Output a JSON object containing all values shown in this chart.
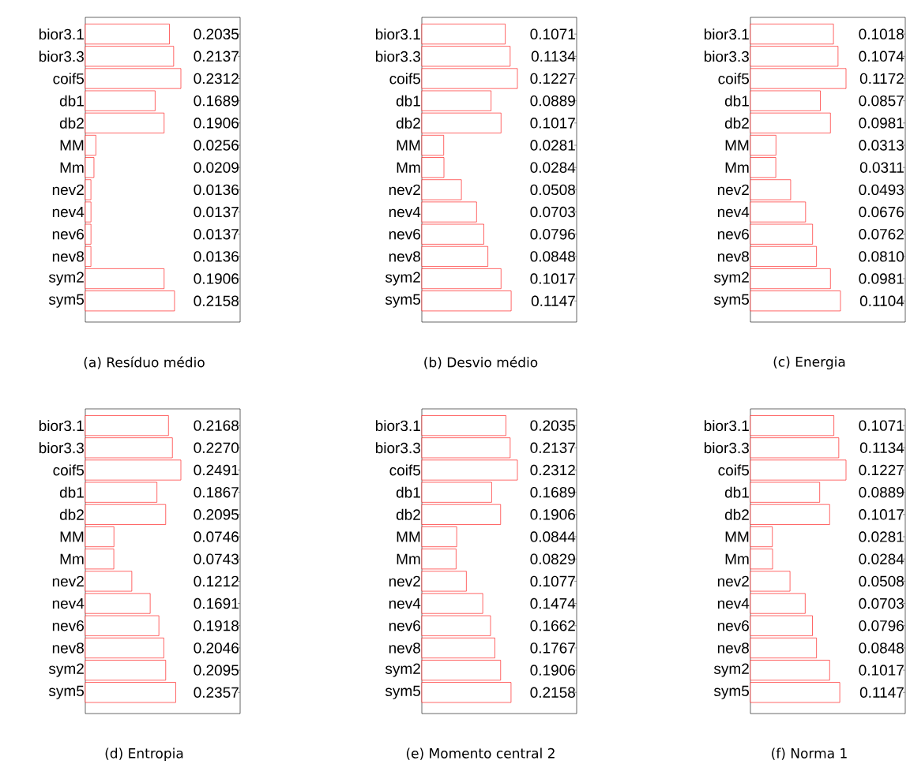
{
  "chart_data": [
    {
      "type": "bar",
      "orientation": "horizontal",
      "title": "(a) Resíduo médio",
      "categories": [
        "bior3.1",
        "bior3.3",
        "coif5",
        "db1",
        "db2",
        "MM",
        "Mm",
        "nev2",
        "nev4",
        "nev6",
        "nev8",
        "sym2",
        "sym5"
      ],
      "values": [
        0.2035,
        0.2137,
        0.2312,
        0.1689,
        0.1906,
        0.0256,
        0.0209,
        0.0136,
        0.0137,
        0.0137,
        0.0136,
        0.1906,
        0.2158
      ],
      "value_labels": [
        "0.2035",
        "0.2137",
        "0.2312",
        "0.1689",
        "0.1906",
        "0.0256",
        "0.0209",
        "0.0136",
        "0.0137",
        "0.0137",
        "0.0136",
        "0.1906",
        "0.2158"
      ],
      "color": "#ff0000",
      "tick_labels": "y"
    },
    {
      "type": "bar",
      "orientation": "horizontal",
      "title": "(b) Desvio médio",
      "categories": [
        "bior3.1",
        "bior3.3",
        "coif5",
        "db1",
        "db2",
        "MM",
        "Mm",
        "nev2",
        "nev4",
        "nev6",
        "nev8",
        "sym2",
        "sym5"
      ],
      "values": [
        0.1071,
        0.1134,
        0.1227,
        0.0889,
        0.1017,
        0.0281,
        0.0284,
        0.0508,
        0.0703,
        0.0796,
        0.0848,
        0.1017,
        0.1147
      ],
      "value_labels": [
        "0.1071",
        "0.1134",
        "0.1227",
        "0.0889",
        "0.1017",
        "0.0281",
        "0.0284",
        "0.0508",
        "0.0703",
        "0.0796",
        "0.0848",
        "0.1017",
        "0.1147"
      ],
      "color": "#ff0000",
      "tick_labels": "y"
    },
    {
      "type": "bar",
      "orientation": "horizontal",
      "title": "(c) Energia",
      "categories": [
        "bior3.1",
        "bior3.3",
        "coif5",
        "db1",
        "db2",
        "MM",
        "Mm",
        "nev2",
        "nev4",
        "nev6",
        "nev8",
        "sym2",
        "sym5"
      ],
      "values": [
        0.1018,
        0.1074,
        0.1172,
        0.0857,
        0.0981,
        0.0313,
        0.0311,
        0.0493,
        0.0676,
        0.0762,
        0.081,
        0.0981,
        0.1104
      ],
      "value_labels": [
        "0.1018",
        "0.1074",
        "0.1172",
        "0.0857",
        "0.0981",
        "0.0313",
        "0.0311",
        "0.0493",
        "0.0676",
        "0.0762",
        "0.0810",
        "0.0981",
        "0.1104"
      ],
      "color": "#ff0000",
      "tick_labels": "y"
    },
    {
      "type": "bar",
      "orientation": "horizontal",
      "title": "(d) Entropia",
      "categories": [
        "bior3.1",
        "bior3.3",
        "coif5",
        "db1",
        "db2",
        "MM",
        "Mm",
        "nev2",
        "nev4",
        "nev6",
        "nev8",
        "sym2",
        "sym5"
      ],
      "values": [
        0.2168,
        0.227,
        0.2491,
        0.1867,
        0.2095,
        0.0746,
        0.0743,
        0.1212,
        0.1691,
        0.1918,
        0.2046,
        0.2095,
        0.2357
      ],
      "value_labels": [
        "0.2168",
        "0.2270",
        "0.2491",
        "0.1867",
        "0.2095",
        "0.0746",
        "0.0743",
        "0.1212",
        "0.1691",
        "0.1918",
        "0.2046",
        "0.2095",
        "0.2357"
      ],
      "color": "#ff0000",
      "tick_labels": "y"
    },
    {
      "type": "bar",
      "orientation": "horizontal",
      "title": "(e) Momento central 2",
      "categories": [
        "bior3.1",
        "bior3.3",
        "coif5",
        "db1",
        "db2",
        "MM",
        "Mm",
        "nev2",
        "nev4",
        "nev6",
        "nev8",
        "sym2",
        "sym5"
      ],
      "values": [
        0.2035,
        0.2137,
        0.2312,
        0.1689,
        0.1906,
        0.0844,
        0.0829,
        0.1077,
        0.1474,
        0.1662,
        0.1767,
        0.1906,
        0.2158
      ],
      "value_labels": [
        "0.2035",
        "0.2137",
        "0.2312",
        "0.1689",
        "0.1906",
        "0.0844",
        "0.0829",
        "0.1077",
        "0.1474",
        "0.1662",
        "0.1767",
        "0.1906",
        "0.2158"
      ],
      "color": "#ff0000",
      "tick_labels": "y"
    },
    {
      "type": "bar",
      "orientation": "horizontal",
      "title": "(f) Norma 1",
      "categories": [
        "bior3.1",
        "bior3.3",
        "coif5",
        "db1",
        "db2",
        "MM",
        "Mm",
        "nev2",
        "nev4",
        "nev6",
        "nev8",
        "sym2",
        "sym5"
      ],
      "values": [
        0.1071,
        0.1134,
        0.1227,
        0.0889,
        0.1017,
        0.0281,
        0.0284,
        0.0508,
        0.0703,
        0.0796,
        0.0848,
        0.1017,
        0.1147
      ],
      "value_labels": [
        "0.1071",
        "0.1134",
        "0.1227",
        "0.0889",
        "0.1017",
        "0.0281",
        "0.0284",
        "0.0508",
        "0.0703",
        "0.0796",
        "0.0848",
        "0.1017",
        "0.1147"
      ],
      "color": "#ff0000",
      "tick_labels": "y"
    }
  ]
}
